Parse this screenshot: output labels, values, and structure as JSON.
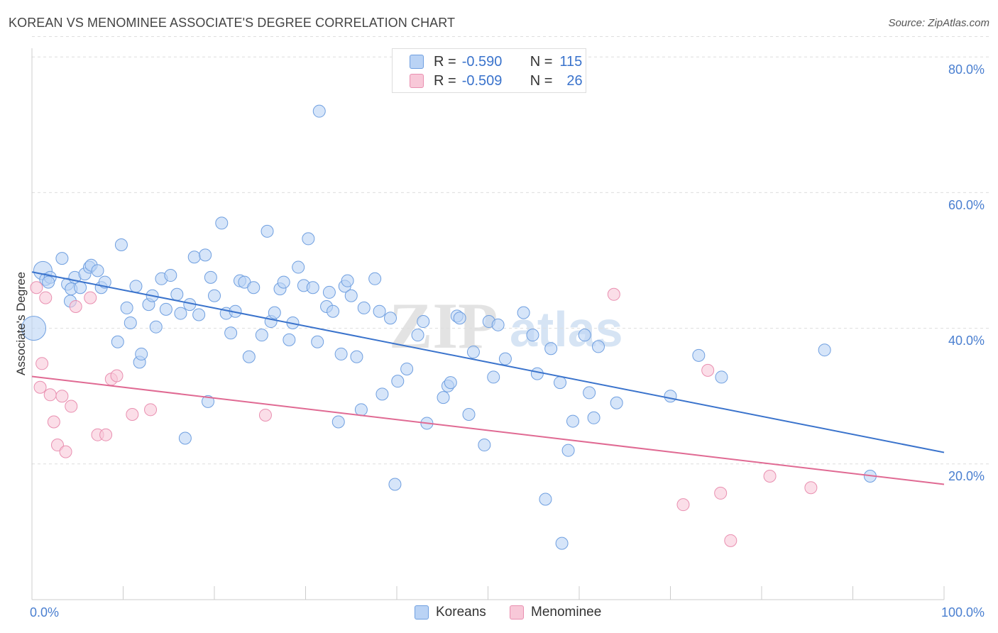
{
  "title": "KOREAN VS MENOMINEE ASSOCIATE'S DEGREE CORRELATION CHART",
  "source": "Source: ZipAtlas.com",
  "watermark": "ZIPatlas",
  "legend": {
    "rows": [
      {
        "r_label": "R =",
        "r_value": "-0.590",
        "n_label": "N =",
        "n_value": "115"
      },
      {
        "r_label": "R =",
        "r_value": "-0.509",
        "n_label": "N =",
        "n_value": "26"
      }
    ]
  },
  "bottom_legend": [
    "Koreans",
    "Menominee"
  ],
  "colors": {
    "koreans": "#3a73cc",
    "menominee": "#e06a93",
    "koreans_fill": "#bad3f5",
    "menominee_fill": "#f8c8d8"
  },
  "chart_data": {
    "type": "scatter",
    "title": "KOREAN VS MENOMINEE ASSOCIATE'S DEGREE CORRELATION CHART",
    "xlabel": "",
    "ylabel": "Associate's Degree",
    "x_tick_labels": [
      "0.0%",
      "100.0%"
    ],
    "y_tick_labels": [
      "20.0%",
      "40.0%",
      "60.0%",
      "80.0%"
    ],
    "y_ticks": [
      20,
      40,
      60,
      80
    ],
    "xlim": [
      0,
      100
    ],
    "ylim": [
      0,
      83
    ],
    "grid": true,
    "series": [
      {
        "name": "Koreans",
        "r": -0.59,
        "n": 115,
        "trend": {
          "x": [
            0,
            100
          ],
          "y": [
            48.3,
            21.7
          ]
        },
        "points": [
          [
            1.2,
            48.5
          ],
          [
            0.2,
            40.0
          ],
          [
            1.5,
            47.2
          ],
          [
            2.0,
            47.5
          ],
          [
            1.8,
            46.8
          ],
          [
            3.3,
            50.3
          ],
          [
            3.9,
            46.5
          ],
          [
            4.2,
            44.0
          ],
          [
            4.3,
            45.8
          ],
          [
            4.7,
            47.5
          ],
          [
            5.3,
            46.0
          ],
          [
            5.8,
            48.0
          ],
          [
            6.3,
            49.0
          ],
          [
            6.5,
            49.3
          ],
          [
            7.2,
            48.5
          ],
          [
            7.6,
            46.0
          ],
          [
            8.0,
            46.8
          ],
          [
            9.4,
            38.0
          ],
          [
            9.8,
            52.3
          ],
          [
            10.4,
            43.0
          ],
          [
            10.8,
            40.8
          ],
          [
            11.4,
            46.2
          ],
          [
            11.8,
            35.0
          ],
          [
            12.0,
            36.2
          ],
          [
            12.8,
            43.5
          ],
          [
            13.2,
            44.8
          ],
          [
            13.6,
            40.2
          ],
          [
            14.2,
            47.3
          ],
          [
            14.7,
            42.8
          ],
          [
            15.2,
            47.8
          ],
          [
            15.9,
            45.0
          ],
          [
            16.3,
            42.2
          ],
          [
            16.8,
            23.8
          ],
          [
            17.3,
            43.5
          ],
          [
            17.8,
            50.5
          ],
          [
            18.3,
            42.0
          ],
          [
            19.0,
            50.8
          ],
          [
            19.3,
            29.2
          ],
          [
            19.6,
            47.5
          ],
          [
            20.0,
            44.8
          ],
          [
            20.8,
            55.5
          ],
          [
            21.3,
            42.2
          ],
          [
            21.8,
            39.3
          ],
          [
            22.3,
            42.5
          ],
          [
            22.8,
            47.0
          ],
          [
            23.3,
            46.8
          ],
          [
            23.8,
            35.8
          ],
          [
            24.3,
            46.0
          ],
          [
            25.2,
            39.0
          ],
          [
            25.8,
            54.3
          ],
          [
            26.2,
            41.0
          ],
          [
            26.6,
            42.3
          ],
          [
            27.2,
            45.8
          ],
          [
            27.6,
            46.8
          ],
          [
            28.2,
            38.3
          ],
          [
            28.6,
            40.8
          ],
          [
            29.2,
            49.0
          ],
          [
            29.8,
            46.3
          ],
          [
            30.3,
            53.2
          ],
          [
            30.8,
            46.0
          ],
          [
            31.3,
            38.0
          ],
          [
            31.5,
            72.0
          ],
          [
            32.3,
            43.2
          ],
          [
            32.6,
            45.3
          ],
          [
            33.0,
            42.5
          ],
          [
            33.6,
            26.2
          ],
          [
            33.9,
            36.2
          ],
          [
            34.3,
            46.2
          ],
          [
            34.6,
            47.0
          ],
          [
            35.0,
            44.8
          ],
          [
            35.6,
            35.8
          ],
          [
            36.1,
            28.0
          ],
          [
            36.4,
            43.0
          ],
          [
            37.6,
            47.3
          ],
          [
            38.1,
            42.5
          ],
          [
            38.4,
            30.3
          ],
          [
            39.3,
            41.5
          ],
          [
            39.8,
            17.0
          ],
          [
            40.1,
            32.2
          ],
          [
            41.1,
            34.0
          ],
          [
            42.3,
            39.0
          ],
          [
            42.9,
            41.0
          ],
          [
            43.3,
            26.0
          ],
          [
            45.1,
            29.8
          ],
          [
            45.6,
            31.5
          ],
          [
            45.9,
            32.0
          ],
          [
            46.6,
            41.8
          ],
          [
            46.9,
            41.5
          ],
          [
            47.9,
            27.3
          ],
          [
            48.4,
            36.5
          ],
          [
            49.6,
            22.8
          ],
          [
            50.1,
            41.0
          ],
          [
            50.6,
            32.8
          ],
          [
            51.1,
            40.5
          ],
          [
            51.9,
            35.5
          ],
          [
            53.9,
            42.3
          ],
          [
            54.9,
            39.0
          ],
          [
            55.4,
            33.3
          ],
          [
            56.3,
            14.8
          ],
          [
            56.9,
            37.0
          ],
          [
            57.9,
            32.0
          ],
          [
            58.1,
            8.3
          ],
          [
            58.8,
            22.0
          ],
          [
            59.3,
            26.3
          ],
          [
            60.6,
            39.0
          ],
          [
            61.1,
            30.5
          ],
          [
            61.6,
            26.8
          ],
          [
            62.1,
            37.3
          ],
          [
            64.1,
            29.0
          ],
          [
            70.0,
            30.0
          ],
          [
            73.1,
            36.0
          ],
          [
            75.6,
            32.8
          ],
          [
            86.9,
            36.8
          ],
          [
            91.9,
            18.2
          ]
        ]
      },
      {
        "name": "Menominee",
        "r": -0.509,
        "n": 26,
        "trend": {
          "x": [
            0,
            100
          ],
          "y": [
            32.9,
            17.0
          ]
        },
        "points": [
          [
            0.5,
            46.0
          ],
          [
            0.9,
            31.3
          ],
          [
            1.1,
            34.8
          ],
          [
            1.5,
            44.5
          ],
          [
            2.0,
            30.2
          ],
          [
            2.4,
            26.2
          ],
          [
            2.8,
            22.8
          ],
          [
            3.3,
            30.0
          ],
          [
            3.7,
            21.8
          ],
          [
            4.3,
            28.5
          ],
          [
            4.8,
            43.2
          ],
          [
            6.4,
            44.5
          ],
          [
            7.2,
            24.3
          ],
          [
            8.1,
            24.3
          ],
          [
            8.7,
            32.5
          ],
          [
            9.3,
            33.0
          ],
          [
            11.0,
            27.3
          ],
          [
            13.0,
            28.0
          ],
          [
            25.6,
            27.2
          ],
          [
            63.8,
            45.0
          ],
          [
            71.4,
            14.0
          ],
          [
            74.1,
            33.8
          ],
          [
            75.5,
            15.7
          ],
          [
            76.6,
            8.7
          ],
          [
            80.9,
            18.2
          ],
          [
            85.4,
            16.5
          ]
        ]
      }
    ]
  }
}
